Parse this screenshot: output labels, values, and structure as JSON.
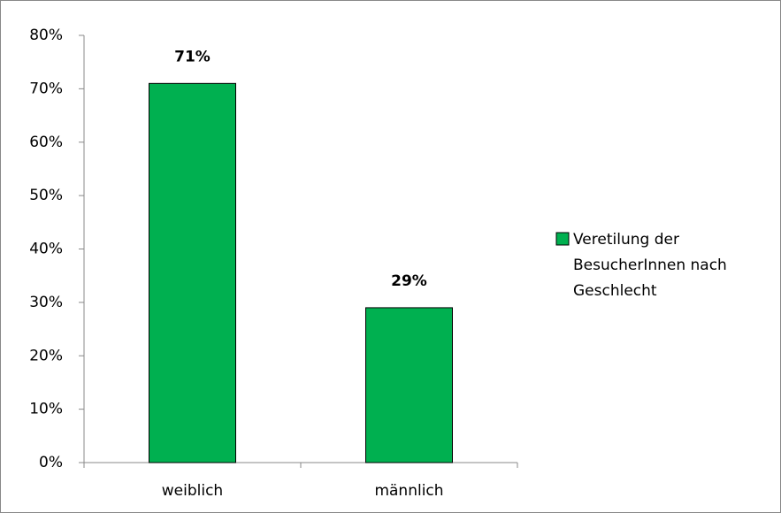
{
  "chart_data": {
    "type": "bar",
    "categories": [
      "weiblich",
      "männlich"
    ],
    "series": [
      {
        "name": "Veretilung der BesucherInnen nach Geschlecht",
        "color": "#00b050",
        "values": [
          71,
          29
        ],
        "value_labels": [
          "71%",
          "29%"
        ]
      }
    ],
    "ylim": [
      0,
      80
    ],
    "yticks": [
      {
        "value": 0,
        "label": "0%"
      },
      {
        "value": 10,
        "label": "10%"
      },
      {
        "value": 20,
        "label": "20%"
      },
      {
        "value": 30,
        "label": "30%"
      },
      {
        "value": 40,
        "label": "40%"
      },
      {
        "value": 50,
        "label": "50%"
      },
      {
        "value": 60,
        "label": "60%"
      },
      {
        "value": 70,
        "label": "70%"
      },
      {
        "value": 80,
        "label": "80%"
      }
    ],
    "grid": false,
    "legend": "right"
  }
}
